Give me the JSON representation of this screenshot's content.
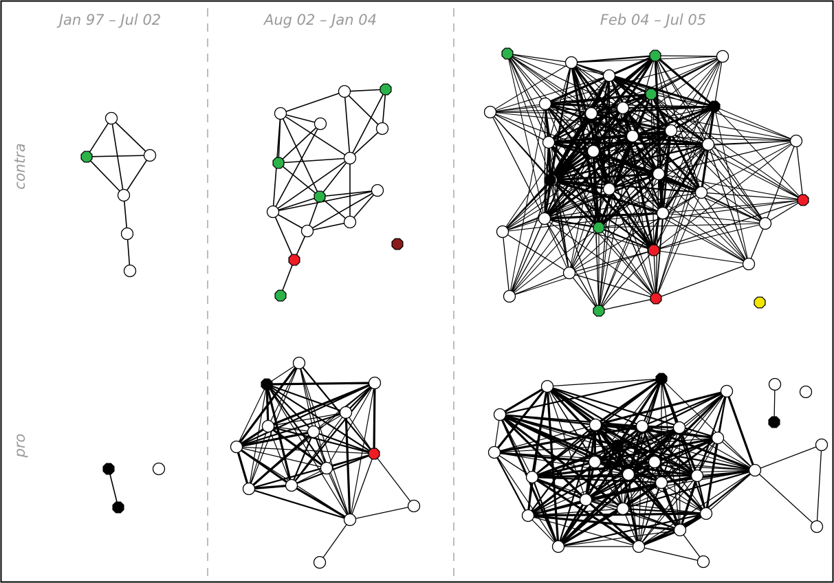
{
  "columns": [
    {
      "label": "Jan 97 – Jul 02"
    },
    {
      "label": "Aug 02 – Jan 04"
    },
    {
      "label": "Feb 04 – Jul 05"
    }
  ],
  "rows": [
    {
      "label": "contra"
    },
    {
      "label": "pro"
    }
  ],
  "colors": {
    "default": "#ffffff",
    "green": "#2bb34a",
    "red": "#ee1c25",
    "dark_red": "#8b1a1a",
    "black": "#000000",
    "yellow": "#f2e600",
    "divider": "#a6a6a6",
    "label": "#9a9a9a"
  },
  "networks": [
    {
      "id": "contra-1",
      "nodes": [
        {
          "id": "a",
          "color": "default"
        },
        {
          "id": "b",
          "color": "green"
        },
        {
          "id": "c",
          "color": "default"
        },
        {
          "id": "d",
          "color": "default"
        },
        {
          "id": "e",
          "color": "default"
        },
        {
          "id": "f",
          "color": "default"
        }
      ],
      "edges": [
        [
          "a",
          "b"
        ],
        [
          "a",
          "c"
        ],
        [
          "a",
          "d"
        ],
        [
          "b",
          "c"
        ],
        [
          "b",
          "d"
        ],
        [
          "c",
          "d"
        ],
        [
          "d",
          "e"
        ],
        [
          "e",
          "f"
        ]
      ]
    },
    {
      "id": "contra-2",
      "nodes": [
        {
          "id": "n1",
          "color": "default"
        },
        {
          "id": "n2",
          "color": "green"
        },
        {
          "id": "n3",
          "color": "default"
        },
        {
          "id": "n4",
          "color": "default"
        },
        {
          "id": "n5",
          "color": "default"
        },
        {
          "id": "n6",
          "color": "green"
        },
        {
          "id": "n7",
          "color": "default"
        },
        {
          "id": "n8",
          "color": "green"
        },
        {
          "id": "n9",
          "color": "default"
        },
        {
          "id": "n10",
          "color": "default"
        },
        {
          "id": "n11",
          "color": "default"
        },
        {
          "id": "n12",
          "color": "default"
        },
        {
          "id": "n13",
          "color": "red"
        },
        {
          "id": "n14",
          "color": "green"
        },
        {
          "id": "n15",
          "color": "dark_red"
        }
      ],
      "edges": [
        [
          "n1",
          "n2"
        ],
        [
          "n1",
          "n3"
        ],
        [
          "n1",
          "n4"
        ],
        [
          "n1",
          "n7"
        ],
        [
          "n2",
          "n3"
        ],
        [
          "n2",
          "n7"
        ],
        [
          "n3",
          "n7"
        ],
        [
          "n4",
          "n5"
        ],
        [
          "n4",
          "n7"
        ],
        [
          "n4",
          "n6"
        ],
        [
          "n4",
          "n8"
        ],
        [
          "n4",
          "n9"
        ],
        [
          "n5",
          "n6"
        ],
        [
          "n5",
          "n9"
        ],
        [
          "n6",
          "n7"
        ],
        [
          "n6",
          "n8"
        ],
        [
          "n7",
          "n8"
        ],
        [
          "n7",
          "n9"
        ],
        [
          "n7",
          "n11"
        ],
        [
          "n8",
          "n10"
        ],
        [
          "n8",
          "n11"
        ],
        [
          "n8",
          "n12"
        ],
        [
          "n8",
          "n9"
        ],
        [
          "n9",
          "n12"
        ],
        [
          "n9",
          "n10"
        ],
        [
          "n10",
          "n12"
        ],
        [
          "n10",
          "n11"
        ],
        [
          "n11",
          "n12"
        ],
        [
          "n12",
          "n13"
        ],
        [
          "n9",
          "n13"
        ],
        [
          "n13",
          "n14"
        ]
      ]
    },
    {
      "id": "contra-3",
      "nodes": [
        {
          "id": "g1",
          "color": "green"
        },
        {
          "id": "w1",
          "color": "default"
        },
        {
          "id": "w2",
          "color": "default"
        },
        {
          "id": "g2",
          "color": "green"
        },
        {
          "id": "w3",
          "color": "default"
        },
        {
          "id": "g3",
          "color": "green"
        },
        {
          "id": "b1",
          "color": "black"
        },
        {
          "id": "w4",
          "color": "default"
        },
        {
          "id": "w5",
          "color": "default"
        },
        {
          "id": "w6",
          "color": "default"
        },
        {
          "id": "w7",
          "color": "default"
        },
        {
          "id": "w8",
          "color": "default"
        },
        {
          "id": "w9",
          "color": "default"
        },
        {
          "id": "w10",
          "color": "default"
        },
        {
          "id": "w11",
          "color": "default"
        },
        {
          "id": "w12",
          "color": "default"
        },
        {
          "id": "w13",
          "color": "default"
        },
        {
          "id": "w14",
          "color": "default"
        },
        {
          "id": "w15",
          "color": "default"
        },
        {
          "id": "w16",
          "color": "default"
        },
        {
          "id": "w17",
          "color": "default"
        },
        {
          "id": "w18",
          "color": "default"
        },
        {
          "id": "w19",
          "color": "default"
        },
        {
          "id": "w20",
          "color": "default"
        },
        {
          "id": "r1",
          "color": "red"
        },
        {
          "id": "g4",
          "color": "green"
        },
        {
          "id": "r2",
          "color": "red"
        },
        {
          "id": "w21",
          "color": "default"
        },
        {
          "id": "w22",
          "color": "default"
        },
        {
          "id": "w23",
          "color": "default"
        },
        {
          "id": "w24",
          "color": "default"
        },
        {
          "id": "g5",
          "color": "green"
        },
        {
          "id": "r3",
          "color": "red"
        },
        {
          "id": "y1",
          "color": "yellow"
        },
        {
          "id": "bk2",
          "color": "black"
        }
      ],
      "core": [
        "w1",
        "w2",
        "g2",
        "g3",
        "b1",
        "w5",
        "w6",
        "w7",
        "w8",
        "w9",
        "w10",
        "w11",
        "w12",
        "w13",
        "w14",
        "w15",
        "w16",
        "w17",
        "w18",
        "g4",
        "r2",
        "bk2"
      ],
      "periphery": [
        "g1",
        "w3",
        "w4",
        "w19",
        "w20",
        "r1",
        "w21",
        "w22",
        "w23",
        "w24",
        "g5",
        "r3"
      ],
      "isolated": [
        "y1"
      ]
    },
    {
      "id": "pro-1",
      "nodes": [
        {
          "id": "p1",
          "color": "black"
        },
        {
          "id": "p2",
          "color": "black"
        },
        {
          "id": "p3",
          "color": "default"
        }
      ],
      "edges": [
        [
          "p1",
          "p2"
        ]
      ]
    },
    {
      "id": "pro-2",
      "nodes": [
        {
          "id": "q1",
          "color": "default"
        },
        {
          "id": "q2",
          "color": "black"
        },
        {
          "id": "q3",
          "color": "default"
        },
        {
          "id": "q4",
          "color": "default"
        },
        {
          "id": "q5",
          "color": "default"
        },
        {
          "id": "q6",
          "color": "default"
        },
        {
          "id": "q7",
          "color": "default"
        },
        {
          "id": "q8",
          "color": "red"
        },
        {
          "id": "q9",
          "color": "default"
        },
        {
          "id": "q10",
          "color": "default"
        },
        {
          "id": "q11",
          "color": "default"
        },
        {
          "id": "q12",
          "color": "default"
        },
        {
          "id": "q13",
          "color": "default"
        },
        {
          "id": "q14",
          "color": "default"
        },
        {
          "id": "q15",
          "color": "default"
        }
      ],
      "core": [
        "q1",
        "q2",
        "q3",
        "q4",
        "q5",
        "q6",
        "q7",
        "q8",
        "q9",
        "q10",
        "q11",
        "q12"
      ]
    },
    {
      "id": "pro-3",
      "nodes": [
        {
          "id": "s1",
          "color": "default"
        },
        {
          "id": "s2",
          "color": "black"
        },
        {
          "id": "s3",
          "color": "default"
        },
        {
          "id": "s4",
          "color": "default"
        },
        {
          "id": "s5",
          "color": "default"
        },
        {
          "id": "s6",
          "color": "default"
        },
        {
          "id": "s7",
          "color": "default"
        },
        {
          "id": "s8",
          "color": "default"
        },
        {
          "id": "s9",
          "color": "default"
        },
        {
          "id": "s10",
          "color": "black"
        },
        {
          "id": "s11",
          "color": "default"
        },
        {
          "id": "s12",
          "color": "default"
        },
        {
          "id": "s13",
          "color": "default"
        },
        {
          "id": "s14",
          "color": "default"
        },
        {
          "id": "s15",
          "color": "default"
        },
        {
          "id": "s16",
          "color": "default"
        },
        {
          "id": "s17",
          "color": "default"
        },
        {
          "id": "s18",
          "color": "default"
        },
        {
          "id": "s19",
          "color": "default"
        },
        {
          "id": "s20",
          "color": "default"
        },
        {
          "id": "s21",
          "color": "default"
        },
        {
          "id": "s22",
          "color": "default"
        },
        {
          "id": "s23",
          "color": "default"
        },
        {
          "id": "s24",
          "color": "default"
        },
        {
          "id": "s25",
          "color": "default"
        },
        {
          "id": "s26",
          "color": "default"
        },
        {
          "id": "s27",
          "color": "default"
        },
        {
          "id": "s28",
          "color": "black"
        },
        {
          "id": "s29",
          "color": "default"
        },
        {
          "id": "s30",
          "color": "default"
        }
      ],
      "core": [
        "s1",
        "s2",
        "s3",
        "s4",
        "s5",
        "s6",
        "s7",
        "s8",
        "s9",
        "s10",
        "s11",
        "s12",
        "s13",
        "s14",
        "s15",
        "s16",
        "s17",
        "s18",
        "s19",
        "s20",
        "s21",
        "s22",
        "s23",
        "s24"
      ]
    }
  ]
}
